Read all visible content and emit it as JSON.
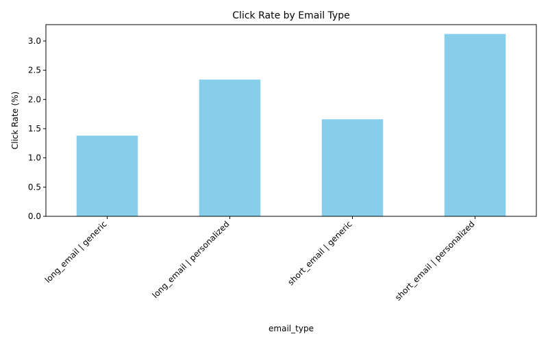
{
  "chart_data": {
    "type": "bar",
    "title": "Click Rate by Email Type",
    "xlabel": "email_type",
    "ylabel": "Click Rate (%)",
    "categories": [
      "long_email | generic",
      "long_email | personalized",
      "short_email | generic",
      "short_email | personalized"
    ],
    "values": [
      1.38,
      2.34,
      1.66,
      3.12
    ],
    "ylim": [
      0,
      3.28
    ],
    "yticks": [
      0.0,
      0.5,
      1.0,
      1.5,
      2.0,
      2.5,
      3.0
    ],
    "ytick_labels": [
      "0.0",
      "0.5",
      "1.0",
      "1.5",
      "2.0",
      "2.5",
      "3.0"
    ],
    "grid": false,
    "legend": "none",
    "bar_color": "#87ceeb",
    "axis_color": "#000000"
  }
}
